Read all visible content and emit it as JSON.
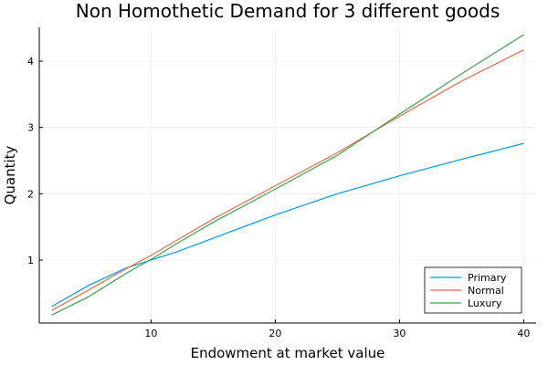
{
  "chart_data": {
    "type": "line",
    "title": "Non Homothetic Demand for 3 different goods",
    "xlabel": "Endowment at market value",
    "ylabel": "Quantity",
    "xlim": [
      1.0,
      41.0
    ],
    "ylim": [
      0.05,
      4.51
    ],
    "xticks": [
      10,
      20,
      30,
      40
    ],
    "yticks": [
      1,
      2,
      3,
      4
    ],
    "grid": true,
    "legend_position": "bottom-right",
    "series": [
      {
        "name": "Primary",
        "color": "#009AFA",
        "x": [
          2,
          5,
          8,
          10,
          12,
          15,
          20,
          25,
          30,
          35,
          40
        ],
        "y": [
          0.3,
          0.62,
          0.88,
          1.0,
          1.12,
          1.33,
          1.68,
          2.0,
          2.27,
          2.52,
          2.76
        ]
      },
      {
        "name": "Normal",
        "color": "#E36F47",
        "x": [
          2,
          5,
          8,
          10,
          12,
          15,
          20,
          25,
          30,
          35,
          40
        ],
        "y": [
          0.24,
          0.55,
          0.87,
          1.07,
          1.29,
          1.62,
          2.12,
          2.62,
          3.17,
          3.7,
          4.17
        ]
      },
      {
        "name": "Luxury",
        "color": "#3EA44E",
        "x": [
          2,
          5,
          8,
          10,
          12,
          15,
          20,
          25,
          30,
          35,
          40
        ],
        "y": [
          0.17,
          0.45,
          0.8,
          1.01,
          1.24,
          1.57,
          2.07,
          2.58,
          3.2,
          3.81,
          4.4
        ]
      }
    ]
  }
}
